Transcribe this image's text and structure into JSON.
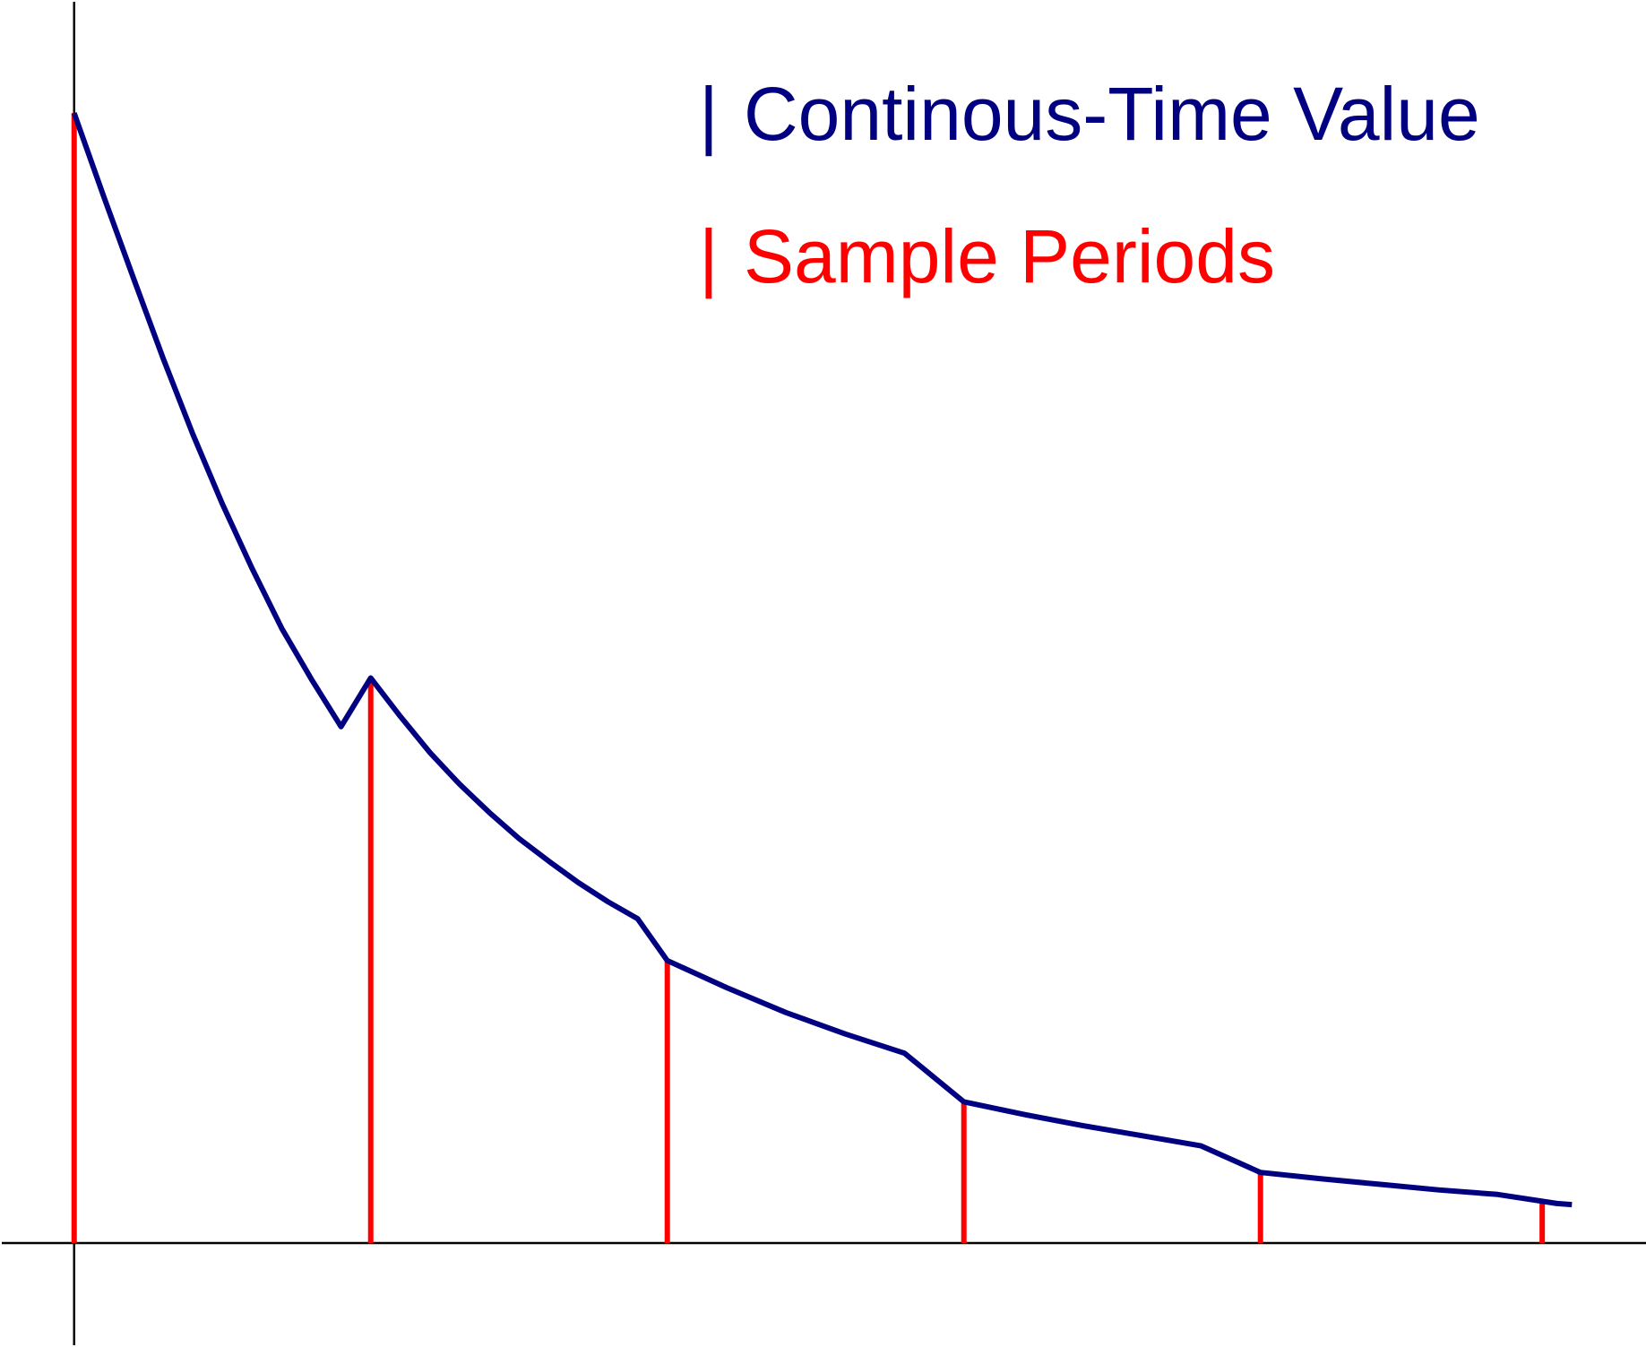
{
  "chart_data": {
    "type": "line",
    "title": "",
    "xlabel": "",
    "ylabel": "",
    "x_range": [
      -0.25,
      5.3
    ],
    "y_range": [
      -0.092,
      1.1
    ],
    "grid": false,
    "legend_placement": "top-right",
    "series": [
      {
        "name": "Continous-Time Value",
        "color": "#000080",
        "x": [
          0,
          0.1,
          0.2,
          0.3,
          0.4,
          0.5,
          0.6,
          0.7,
          0.8,
          0.9,
          1.0,
          1.1,
          1.2,
          1.3,
          1.4,
          1.5,
          1.6,
          1.7,
          1.8,
          1.9,
          2.0,
          2.2,
          2.4,
          2.6,
          2.8,
          3.0,
          3.2,
          3.4,
          3.6,
          3.8,
          4.0,
          4.2,
          4.4,
          4.6,
          4.8,
          5.0,
          5.05
        ],
        "y": [
          1.0,
          0.926,
          0.854,
          0.783,
          0.716,
          0.654,
          0.597,
          0.544,
          0.499,
          0.457,
          0.5,
          0.466,
          0.434,
          0.406,
          0.381,
          0.358,
          0.338,
          0.319,
          0.302,
          0.287,
          0.25,
          0.226,
          0.204,
          0.185,
          0.168,
          0.125,
          0.114,
          0.104,
          0.095,
          0.086,
          0.0625,
          0.057,
          0.052,
          0.047,
          0.043,
          0.035,
          0.034
        ]
      },
      {
        "name": "Sample Periods",
        "color": "#ff0000",
        "style": "stem",
        "x": [
          0,
          1,
          2,
          3,
          4,
          4.95
        ],
        "y": [
          1.0,
          0.5,
          0.25,
          0.125,
          0.0625,
          0.035
        ]
      }
    ]
  },
  "legend": {
    "marker": "|",
    "continuous_label": "Continous-Time Value",
    "samples_label": "Sample Periods"
  }
}
